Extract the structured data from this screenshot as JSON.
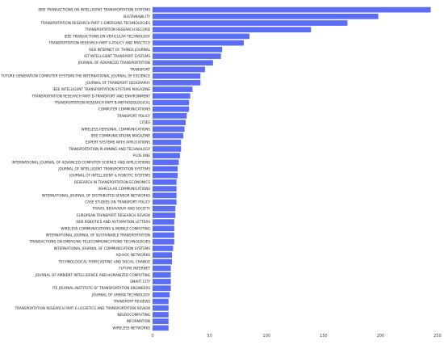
{
  "chart_data": {
    "type": "bar",
    "orientation": "horizontal",
    "xlim": [
      0,
      250
    ],
    "xticks": [
      0,
      50,
      100,
      150,
      200,
      250
    ],
    "bar_color": "#5b6cf5",
    "grid": false,
    "categories": [
      "IEEE TRANSACTIONS ON INTELLIGENT TRANSPORTATION SYSTEMS",
      "SUSTAINABILITY",
      "TRANSPORTATION RESEARCH PART C-EMERGING TECHNOLOGIES",
      "TRANSPORTATION RESEARCH RECORD",
      "IEEE TRANSACTIONS ON VEHICULAR TECHNOLOGY",
      "TRANSPORTATION RESEARCH PART A-POLICY AND PRACTICE",
      "IEEE INTERNET OF THINGS JOURNAL",
      "IET INTELLIGENT TRANSPORT SYSTEMS",
      "JOURNAL OF ADVANCED TRANSPORTATION",
      "TRANSPORT",
      "FUTURE GENERATION COMPUTER SYSTEMS-THE INTERNATIONAL JOURNAL OF ESCIENCE",
      "JOURNAL OF TRANSPORT GEOGRAPHY",
      "IEEE INTELLIGENT TRANSPORTATION SYSTEMS MAGAZINE",
      "TRANSPORTATION RESEARCH PART D-TRANSPORT AND ENVIRONMENT",
      "TRANSPORTATION RESEARCH PART B-METHODOLOGICAL",
      "COMPUTER COMMUNICATIONS",
      "TRANSPORT POLICY",
      "CITIES",
      "WIRELESS PERSONAL COMMUNICATIONS",
      "IEEE COMMUNICATIONS MAGAZINE",
      "EXPERT SYSTEMS WITH APPLICATIONS",
      "TRANSPORTATION PLANNING AND TECHNOLOGY",
      "PLOS ONE",
      "INTERNATIONAL JOURNAL OF ADVANCED COMPUTER SCIENCE AND APPLICATIONS",
      "JOURNAL OF INTELLIGENT TRANSPORTATION SYSTEMS",
      "JOURNAL OF INTELLIGENT & ROBOTIC SYSTEMS",
      "RESEARCH IN TRANSPORTATION ECONOMICS",
      "VEHICULAR COMMUNICATIONS",
      "INTERNATIONAL JOURNAL OF DISTRIBUTED SENSOR NETWORKS",
      "CASE STUDIES ON TRANSPORT POLICY",
      "TRAVEL BEHAVIOUR AND SOCIETY",
      "EUROPEAN TRANSPORT RESEARCH REVIEW",
      "IEEE ROBOTICS AND AUTOMATION LETTERS",
      "WIRELESS COMMUNICATIONS & MOBILE COMPUTING",
      "INTERNATIONAL JOURNAL OF SUSTAINABLE TRANSPORTATION",
      "TRANSACTIONS ON EMERGING TELECOMMUNICATIONS TECHNOLOGIES",
      "INTERNATIONAL JOURNAL OF COMMUNICATION SYSTEMS",
      "AD-HOC NETWORKS",
      "TECHNOLOGICAL FORECASTING AND SOCIAL CHANGE",
      "FUTURE INTERNET",
      "JOURNAL OF AMBIENT INTELLIGENCE AND HUMANIZED COMPUTING",
      "SMART CITY",
      "ITE JOURNAL-INSTITUTE OF TRANSPORTATION ENGINEERS",
      "JOURNAL OF URBAN TECHNOLOGY",
      "TRANSPORT REVIEWS",
      "TRANSPORTATION RESEARCH PART E-LOGISTICS AND TRANSPORTATION REVIEW",
      "NEUROCOMPUTING",
      "INFORMATION",
      "WIRELESS NETWORKS"
    ],
    "values": [
      244,
      198,
      171,
      139,
      85,
      80,
      61,
      60,
      53,
      46,
      42,
      42,
      35,
      33,
      32,
      32,
      30,
      29,
      28,
      27,
      25,
      25,
      24,
      23,
      22,
      22,
      21,
      21,
      21,
      21,
      20,
      20,
      19,
      19,
      19,
      19,
      18,
      17,
      17,
      16,
      16,
      16,
      16,
      15,
      14,
      14,
      14,
      14,
      14
    ]
  }
}
